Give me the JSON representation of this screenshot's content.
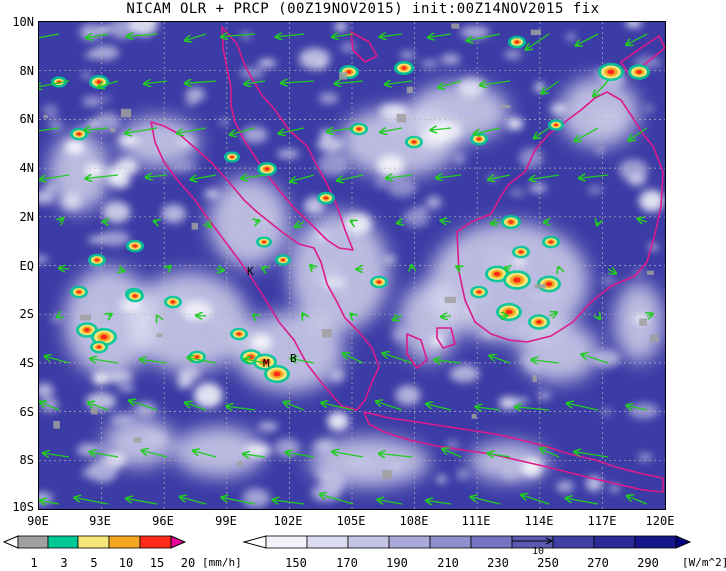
{
  "title": "NICAM OLR + PRCP (00Z19NOV2015) init:00Z14NOV2015 fix",
  "lat_labels": [
    "10N",
    "8N",
    "6N",
    "4N",
    "2N",
    "EQ",
    "2S",
    "4S",
    "6S",
    "8S",
    "10S"
  ],
  "lon_labels": [
    "90E",
    "93E",
    "96E",
    "99E",
    "102E",
    "105E",
    "108E",
    "111E",
    "114E",
    "117E",
    "120E"
  ],
  "place_markers": [
    "K",
    "M",
    "B"
  ],
  "precip_colorbar": {
    "labels": [
      "1",
      "3",
      "5",
      "10",
      "15",
      "20"
    ],
    "unit": "[mm/h]",
    "colors": [
      "#ffffff",
      "#a0a0a0",
      "#00c896",
      "#f5e67a",
      "#f5a623",
      "#ff2a1a",
      "#e8009a"
    ]
  },
  "olr_colorbar": {
    "labels": [
      "150",
      "170",
      "190",
      "210",
      "230",
      "250",
      "270",
      "290"
    ],
    "unit": "[W/m^2]",
    "vector_ref_label": "10",
    "colors": [
      "#ffffff",
      "#f2f2fa",
      "#dcdcf0",
      "#c4c4e6",
      "#a9a9da",
      "#8f8fcd",
      "#7474c0",
      "#5a5ab3",
      "#3f3fa6",
      "#2a2a99",
      "#16168c",
      "#000080"
    ]
  },
  "colors": {
    "background_olr": "#3c3ca6",
    "coastline": "#dd1a8c",
    "wind_vectors": "#22cc22",
    "grid": "#b4b4b4"
  }
}
